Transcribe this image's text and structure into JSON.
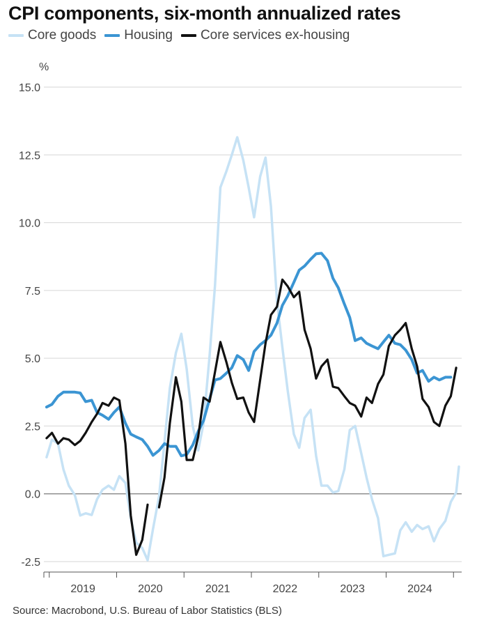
{
  "title": "CPI components, six-month annualized rates",
  "source": "Source: Macrobond, U.S. Bureau of Labor Statistics (BLS)",
  "chart_data": {
    "type": "line",
    "title": "CPI components, six-month annualized rates",
    "ylabel": "%",
    "xlabel": "",
    "ylim": [
      -2.5,
      15.0
    ],
    "xlim": [
      2018.42,
      2024.58
    ],
    "y_ticks": [
      "15.0",
      "12.5",
      "10.0",
      "7.5",
      "5.0",
      "2.5",
      "0.0",
      "-2.5"
    ],
    "y_tick_values": [
      15.0,
      12.5,
      10.0,
      7.5,
      5.0,
      2.5,
      0.0,
      -2.5
    ],
    "x_tick_labels": [
      "2019",
      "2020",
      "2021",
      "2022",
      "2023",
      "2024"
    ],
    "x_tick_values": [
      2019.0,
      2020.0,
      2021.0,
      2022.0,
      2023.0,
      2024.0
    ],
    "grid": true,
    "legend_position": "top-left",
    "series": [
      {
        "name": "Core goods",
        "color": "#c6e2f5",
        "points": [
          [
            2018.46,
            1.35
          ],
          [
            2018.54,
            2.0
          ],
          [
            2018.63,
            1.85
          ],
          [
            2018.71,
            0.9
          ],
          [
            2018.79,
            0.3
          ],
          [
            2018.88,
            -0.05
          ],
          [
            2018.96,
            -0.8
          ],
          [
            2019.04,
            -0.72
          ],
          [
            2019.13,
            -0.78
          ],
          [
            2019.21,
            -0.2
          ],
          [
            2019.29,
            0.15
          ],
          [
            2019.38,
            0.3
          ],
          [
            2019.46,
            0.15
          ],
          [
            2019.54,
            0.65
          ],
          [
            2019.63,
            0.4
          ],
          [
            2019.71,
            -0.9
          ],
          [
            2019.79,
            -1.8
          ],
          [
            2019.88,
            -2.0
          ],
          [
            2019.96,
            -2.45
          ],
          [
            2020.04,
            -1.3
          ],
          [
            2020.13,
            -0.1
          ],
          [
            2020.21,
            1.9
          ],
          [
            2020.29,
            3.9
          ],
          [
            2020.38,
            5.2
          ],
          [
            2020.46,
            5.9
          ],
          [
            2020.54,
            4.6
          ],
          [
            2020.63,
            2.5
          ],
          [
            2020.71,
            1.6
          ],
          [
            2020.79,
            2.6
          ],
          [
            2020.88,
            5.1
          ],
          [
            2020.96,
            7.7
          ],
          [
            2021.04,
            11.3
          ],
          [
            2021.13,
            11.9
          ],
          [
            2021.21,
            12.5
          ],
          [
            2021.29,
            13.15
          ],
          [
            2021.38,
            12.3
          ],
          [
            2021.46,
            11.3
          ],
          [
            2021.54,
            10.2
          ],
          [
            2021.63,
            11.7
          ],
          [
            2021.71,
            12.4
          ],
          [
            2021.79,
            10.6
          ],
          [
            2021.88,
            7.1
          ],
          [
            2021.96,
            5.4
          ],
          [
            2022.04,
            3.8
          ],
          [
            2022.13,
            2.2
          ],
          [
            2022.21,
            1.7
          ],
          [
            2022.29,
            2.8
          ],
          [
            2022.38,
            3.1
          ],
          [
            2022.46,
            1.4
          ],
          [
            2022.54,
            0.3
          ],
          [
            2022.63,
            0.3
          ],
          [
            2022.71,
            0.05
          ],
          [
            2022.79,
            0.1
          ],
          [
            2022.88,
            0.9
          ],
          [
            2022.96,
            2.35
          ],
          [
            2023.04,
            2.5
          ],
          [
            2023.13,
            1.5
          ],
          [
            2023.21,
            0.6
          ],
          [
            2023.29,
            -0.2
          ],
          [
            2023.38,
            -0.9
          ],
          [
            2023.46,
            -2.3
          ],
          [
            2023.54,
            -2.25
          ],
          [
            2023.63,
            -2.2
          ],
          [
            2023.71,
            -1.35
          ],
          [
            2023.79,
            -1.05
          ],
          [
            2023.88,
            -1.4
          ],
          [
            2023.96,
            -1.15
          ],
          [
            2024.04,
            -1.3
          ],
          [
            2024.13,
            -1.2
          ],
          [
            2024.21,
            -1.75
          ],
          [
            2024.29,
            -1.3
          ],
          [
            2024.38,
            -1.0
          ],
          [
            2024.46,
            -0.3
          ],
          [
            2024.54,
            0.05
          ],
          [
            2024.58,
            1.0
          ]
        ]
      },
      {
        "name": "Housing",
        "color": "#3b95d3",
        "points": [
          [
            2018.46,
            3.2
          ],
          [
            2018.54,
            3.3
          ],
          [
            2018.63,
            3.6
          ],
          [
            2018.71,
            3.75
          ],
          [
            2018.79,
            3.75
          ],
          [
            2018.88,
            3.75
          ],
          [
            2018.96,
            3.72
          ],
          [
            2019.04,
            3.4
          ],
          [
            2019.13,
            3.45
          ],
          [
            2019.21,
            3.0
          ],
          [
            2019.29,
            2.9
          ],
          [
            2019.38,
            2.75
          ],
          [
            2019.46,
            3.0
          ],
          [
            2019.54,
            3.2
          ],
          [
            2019.63,
            2.6
          ],
          [
            2019.71,
            2.2
          ],
          [
            2019.79,
            2.1
          ],
          [
            2019.88,
            2.0
          ],
          [
            2019.96,
            1.75
          ],
          [
            2020.04,
            1.42
          ],
          [
            2020.13,
            1.6
          ],
          [
            2020.21,
            1.85
          ],
          [
            2020.29,
            1.75
          ],
          [
            2020.38,
            1.75
          ],
          [
            2020.46,
            1.4
          ],
          [
            2020.54,
            1.45
          ],
          [
            2020.63,
            1.8
          ],
          [
            2020.71,
            2.3
          ],
          [
            2020.79,
            2.7
          ],
          [
            2020.88,
            3.5
          ],
          [
            2020.96,
            4.2
          ],
          [
            2021.04,
            4.25
          ],
          [
            2021.13,
            4.45
          ],
          [
            2021.21,
            4.65
          ],
          [
            2021.29,
            5.1
          ],
          [
            2021.38,
            4.95
          ],
          [
            2021.46,
            4.55
          ],
          [
            2021.54,
            5.25
          ],
          [
            2021.63,
            5.5
          ],
          [
            2021.71,
            5.65
          ],
          [
            2021.79,
            5.85
          ],
          [
            2021.88,
            6.3
          ],
          [
            2021.96,
            6.95
          ],
          [
            2022.04,
            7.3
          ],
          [
            2022.13,
            7.8
          ],
          [
            2022.21,
            8.25
          ],
          [
            2022.29,
            8.4
          ],
          [
            2022.38,
            8.65
          ],
          [
            2022.46,
            8.85
          ],
          [
            2022.54,
            8.87
          ],
          [
            2022.63,
            8.6
          ],
          [
            2022.71,
            7.95
          ],
          [
            2022.79,
            7.6
          ],
          [
            2022.88,
            7.0
          ],
          [
            2022.96,
            6.5
          ],
          [
            2023.04,
            5.65
          ],
          [
            2023.13,
            5.75
          ],
          [
            2023.21,
            5.55
          ],
          [
            2023.29,
            5.45
          ],
          [
            2023.38,
            5.35
          ],
          [
            2023.46,
            5.6
          ],
          [
            2023.54,
            5.85
          ],
          [
            2023.63,
            5.55
          ],
          [
            2023.71,
            5.5
          ],
          [
            2023.79,
            5.3
          ],
          [
            2023.88,
            4.95
          ],
          [
            2023.96,
            4.45
          ],
          [
            2024.04,
            4.55
          ],
          [
            2024.13,
            4.15
          ],
          [
            2024.21,
            4.3
          ],
          [
            2024.29,
            4.2
          ],
          [
            2024.38,
            4.3
          ],
          [
            2024.46,
            4.3
          ]
        ]
      },
      {
        "name": "Core services ex-housing",
        "color": "#111111",
        "points": [
          [
            2018.46,
            2.05
          ],
          [
            2018.54,
            2.25
          ],
          [
            2018.63,
            1.85
          ],
          [
            2018.71,
            2.05
          ],
          [
            2018.79,
            2.0
          ],
          [
            2018.88,
            1.8
          ],
          [
            2018.96,
            1.95
          ],
          [
            2019.04,
            2.25
          ],
          [
            2019.13,
            2.65
          ],
          [
            2019.21,
            2.95
          ],
          [
            2019.29,
            3.35
          ],
          [
            2019.38,
            3.25
          ],
          [
            2019.46,
            3.55
          ],
          [
            2019.54,
            3.45
          ],
          [
            2019.63,
            1.85
          ],
          [
            2019.71,
            -0.8
          ],
          [
            2019.79,
            -2.25
          ],
          [
            2019.88,
            -1.7
          ],
          [
            2019.96,
            -0.4
          ],
          [
            2020.04,
            null
          ],
          [
            2020.13,
            -0.5
          ],
          [
            2020.21,
            0.6
          ],
          [
            2020.29,
            2.6
          ],
          [
            2020.38,
            4.3
          ],
          [
            2020.46,
            3.4
          ],
          [
            2020.54,
            1.25
          ],
          [
            2020.63,
            1.25
          ],
          [
            2020.71,
            2.1
          ],
          [
            2020.79,
            3.55
          ],
          [
            2020.88,
            3.4
          ],
          [
            2020.96,
            4.5
          ],
          [
            2021.04,
            5.6
          ],
          [
            2021.13,
            4.85
          ],
          [
            2021.21,
            4.1
          ],
          [
            2021.29,
            3.5
          ],
          [
            2021.38,
            3.55
          ],
          [
            2021.46,
            3.0
          ],
          [
            2021.54,
            2.65
          ],
          [
            2021.63,
            4.2
          ],
          [
            2021.71,
            5.55
          ],
          [
            2021.79,
            6.6
          ],
          [
            2021.88,
            6.9
          ],
          [
            2021.96,
            7.9
          ],
          [
            2022.04,
            7.65
          ],
          [
            2022.13,
            7.25
          ],
          [
            2022.21,
            7.45
          ],
          [
            2022.29,
            6.05
          ],
          [
            2022.38,
            5.35
          ],
          [
            2022.46,
            4.25
          ],
          [
            2022.54,
            4.7
          ],
          [
            2022.63,
            4.95
          ],
          [
            2022.71,
            3.95
          ],
          [
            2022.79,
            3.9
          ],
          [
            2022.88,
            3.6
          ],
          [
            2022.96,
            3.35
          ],
          [
            2023.04,
            3.25
          ],
          [
            2023.13,
            2.85
          ],
          [
            2023.21,
            3.55
          ],
          [
            2023.29,
            3.35
          ],
          [
            2023.38,
            4.05
          ],
          [
            2023.46,
            4.4
          ],
          [
            2023.54,
            5.45
          ],
          [
            2023.63,
            5.85
          ],
          [
            2023.71,
            6.05
          ],
          [
            2023.79,
            6.3
          ],
          [
            2023.88,
            5.35
          ],
          [
            2023.96,
            4.7
          ],
          [
            2024.04,
            3.5
          ],
          [
            2024.13,
            3.2
          ],
          [
            2024.21,
            2.65
          ],
          [
            2024.29,
            2.5
          ],
          [
            2024.38,
            3.25
          ],
          [
            2024.46,
            3.6
          ],
          [
            2024.54,
            4.65
          ]
        ]
      }
    ]
  }
}
